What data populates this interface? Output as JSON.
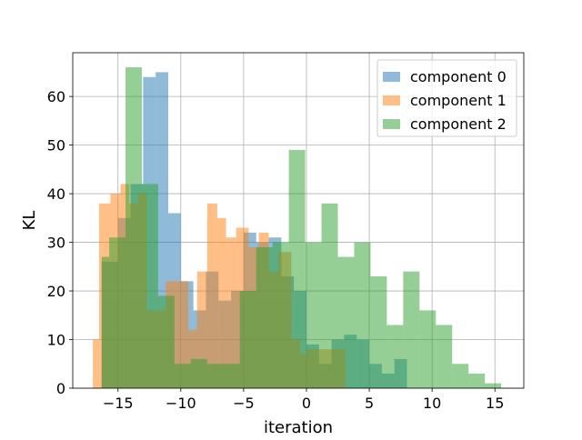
{
  "chart_data": {
    "type": "histogram",
    "xlabel": "iteration",
    "ylabel": "KL",
    "xlim": [
      -18.6,
      17.3
    ],
    "ylim": [
      0,
      69
    ],
    "xticks": [
      -15,
      -10,
      -5,
      0,
      5,
      10,
      15
    ],
    "xtick_labels": [
      "−15",
      "−10",
      "−5",
      "0",
      "5",
      "10",
      "15"
    ],
    "yticks": [
      0,
      10,
      20,
      30,
      40,
      50,
      60
    ],
    "ytick_labels": [
      "0",
      "10",
      "20",
      "30",
      "40",
      "50",
      "60"
    ],
    "grid": true,
    "legend_position": "top-right",
    "series": [
      {
        "name": "component 0",
        "color": "#1f77b4",
        "bin_edges": [
          -16.3,
          -15.0,
          -14.0,
          -13.0,
          -12.0,
          -11.0,
          -10.0,
          -9.0,
          -8.0,
          -7.0,
          -6.0,
          -5.0,
          -4.0,
          -3.0,
          -2.0,
          -1.0,
          0.0,
          1.0,
          2.0,
          3.0,
          4.0,
          5.0,
          6.0,
          7.0,
          8.0
        ],
        "counts": [
          26,
          35,
          42,
          64,
          65,
          36,
          22,
          16,
          24,
          18,
          20,
          32,
          30,
          31,
          23,
          20,
          9,
          5,
          10,
          11,
          10,
          5,
          3,
          6
        ]
      },
      {
        "name": "component 1",
        "color": "#ff7f0e",
        "bin_edges": [
          -17.0,
          -16.5,
          -15.6,
          -14.8,
          -14.1,
          -13.4,
          -12.7,
          -11.2,
          -10.0,
          -9.4,
          -8.7,
          -7.9,
          -7.1,
          -6.4,
          -5.6,
          -4.6,
          -3.8,
          -3.0,
          -2.2,
          -1.2,
          -0.5,
          0.0,
          3.1
        ],
        "counts": [
          10,
          38,
          40,
          42,
          38,
          40,
          16,
          22,
          22,
          12,
          24,
          38,
          35,
          31,
          33,
          29,
          32,
          24,
          28,
          10,
          7,
          8
        ]
      },
      {
        "name": "component 2",
        "color": "#2ca02c",
        "bin_edges": [
          -16.3,
          -15.7,
          -14.4,
          -13.1,
          -11.8,
          -10.5,
          -9.2,
          -7.9,
          -6.6,
          -5.3,
          -4.0,
          -2.7,
          -1.4,
          -0.1,
          1.2,
          2.5,
          3.8,
          5.1,
          6.4,
          7.7,
          9.0,
          10.3,
          11.6,
          12.9,
          14.2,
          15.5
        ],
        "counts": [
          27,
          31,
          66,
          42,
          19,
          5,
          6,
          5,
          5,
          20,
          29,
          30,
          49,
          30,
          38,
          27,
          30,
          23,
          13,
          24,
          16,
          13,
          5,
          3,
          1
        ]
      }
    ]
  }
}
